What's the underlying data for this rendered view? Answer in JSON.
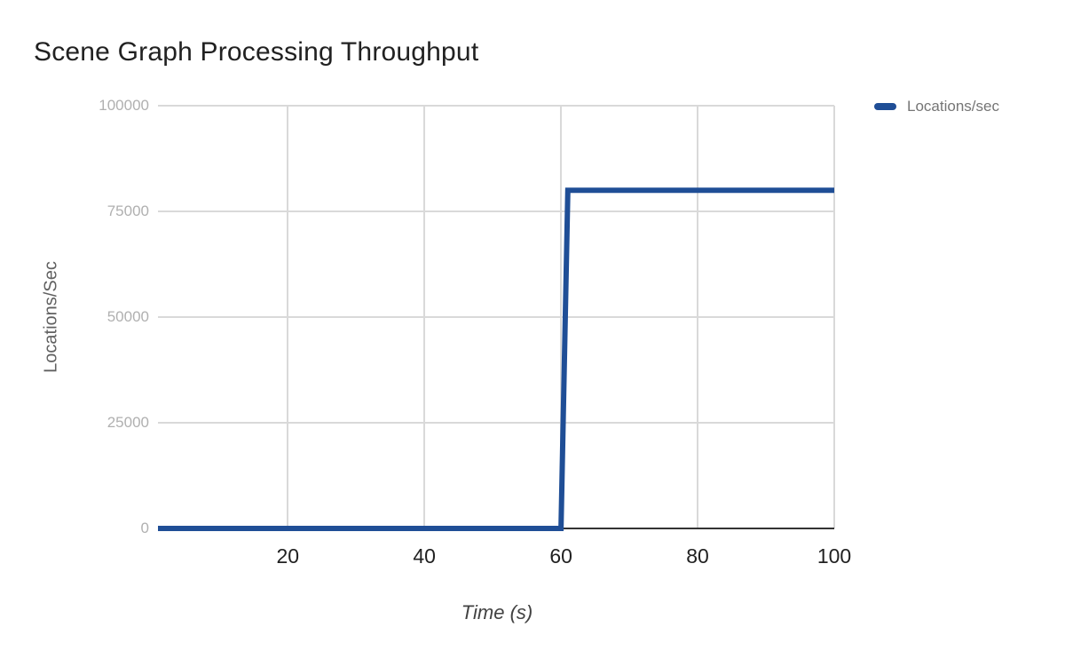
{
  "title": "Scene Graph Processing Throughput",
  "legend": {
    "label": "Locations/sec",
    "position": "right"
  },
  "axes": {
    "y_title": "Locations/Sec",
    "x_title": "Time (s)"
  },
  "colors": {
    "series": "#1f4e96",
    "grid": "#d9d9d9",
    "axis_line": "#333333",
    "y_tick_text": "#b0b0b0",
    "x_tick_text": "#212121",
    "axis_title_text": "#616161",
    "legend_text": "#757575",
    "title_text": "#212121",
    "background": "#ffffff"
  },
  "chart_data": {
    "type": "line",
    "title": "Scene Graph Processing Throughput",
    "xlabel": "Time (s)",
    "ylabel": "Locations/Sec",
    "xlim": [
      1,
      100
    ],
    "ylim": [
      0,
      100000
    ],
    "x_ticks": [
      20,
      40,
      60,
      80,
      100
    ],
    "y_ticks": [
      0,
      25000,
      50000,
      75000,
      100000
    ],
    "grid": true,
    "legend_position": "right",
    "series": [
      {
        "name": "Locations/sec",
        "color": "#1f4e96",
        "line_width": 6,
        "x": [
          1,
          60,
          61,
          100
        ],
        "y": [
          0,
          0,
          80000,
          80000
        ]
      }
    ],
    "description": "Step function: throughput is 0 locations/sec from t=1 to t=60, then jumps to 80000 locations/sec at t=61 and remains flat through t=100."
  }
}
